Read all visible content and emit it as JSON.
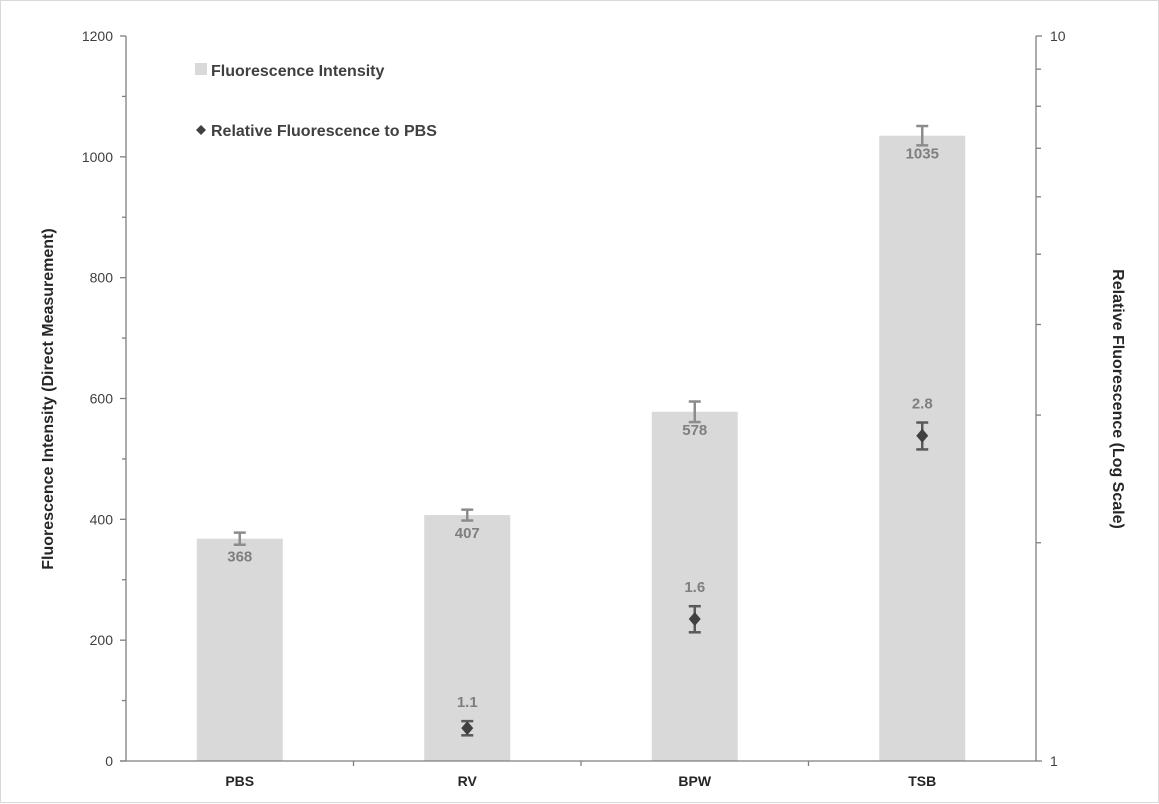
{
  "chart_data": {
    "type": "bar",
    "categories": [
      "PBS",
      "RV",
      "BPW",
      "TSB"
    ],
    "series": [
      {
        "name": "Fluorescence Intensity",
        "kind": "bar",
        "axis": "left",
        "values": [
          368,
          407,
          578,
          1035
        ],
        "errors": [
          10,
          9,
          17,
          16
        ],
        "labels": [
          "368",
          "407",
          "578",
          "1035"
        ],
        "color": "#d9d9d9"
      },
      {
        "name": "Relative Fluorescence to PBS",
        "kind": "scatter",
        "axis": "right",
        "values": [
          null,
          1.11,
          1.57,
          2.81
        ],
        "errors": [
          null,
          0.025,
          0.065,
          0.12
        ],
        "labels": [
          null,
          "1.1",
          "1.6",
          "2.8"
        ],
        "color": "#404040"
      }
    ],
    "ylabel": "Fluorescence Intensity (Direct Measurement)",
    "y2label": "Relative Fluorescence (Log Scale)",
    "ylim": [
      0,
      1200
    ],
    "yticks": [
      "0",
      "200",
      "400",
      "600",
      "800",
      "1000",
      "1200"
    ],
    "y2lim": [
      1,
      10
    ],
    "y2scale": "log",
    "y2ticks": [
      "1",
      "10"
    ],
    "legend": [
      "Fluorescence Intensity",
      "Relative Fluorescence to PBS"
    ],
    "legend_position": "top-left",
    "grid": false
  }
}
